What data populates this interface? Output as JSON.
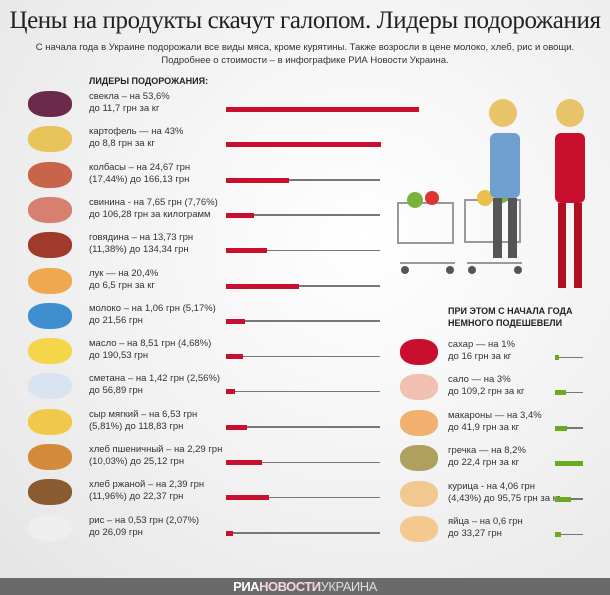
{
  "title": "Цены на продукты скачут галопом. Лидеры подорожания",
  "subtitle_1": "С начала года в Украине подорожали все виды мяса, кроме курятины. Также возросли в цене молоко, хлеб, рис и овощи.",
  "subtitle_2": "Подробнее о стоимости – в инфографике РИА Новости Украина.",
  "leaders_header": "ЛИДЕРЫ ПОДОРОЖАНИЯ:",
  "cheaper_header_1": "ПРИ ЭТОМ С НАЧАЛА ГОДА",
  "cheaper_header_2": "НЕМНОГО ПОДЕШЕВЕЛИ",
  "footer": {
    "ria": "РИА",
    "novosti": "НОВОСТИ",
    "ukraina": "УКРАИНА"
  },
  "colors": {
    "increase": "#c8102e",
    "decrease": "#6aaa1e",
    "track": "#777777",
    "footer": "#6a6a6a"
  },
  "chart_data": {
    "type": "bar",
    "unit": "%",
    "series": [
      {
        "group": "increase",
        "items": [
          {
            "icon": "beet-icon",
            "line1": "свекла – на 53,6%",
            "line2": "до 11,7 грн за кг",
            "value": 53.6
          },
          {
            "icon": "potato-icon",
            "line1": "картофель — на 43%",
            "line2": "до 8,8 грн за кг",
            "value": 43
          },
          {
            "icon": "sausage-icon",
            "line1": "колбасы – на 24,67 грн",
            "line2": "(17,44%) до 166,13 грн",
            "value": 17.44
          },
          {
            "icon": "pork-icon",
            "line1": "свинина - на 7,65 грн (7,76%)",
            "line2": "до 106,28 грн за килограмм",
            "value": 7.76
          },
          {
            "icon": "beef-icon",
            "line1": "говядина – на 13,73 грн",
            "line2": "(11,38%) до 134,34 грн",
            "value": 11.38
          },
          {
            "icon": "onion-icon",
            "line1": "лук — на 20,4%",
            "line2": "до 6,5 грн за кг",
            "value": 20.4
          },
          {
            "icon": "milk-icon",
            "line1": "молоко – на 1,06 грн (5,17%)",
            "line2": "до 21,56 грн",
            "value": 5.17
          },
          {
            "icon": "butter-icon",
            "line1": "масло – на 8,51 грн (4,68%)",
            "line2": "до 190,53 грн",
            "value": 4.68
          },
          {
            "icon": "sour-cream-icon",
            "line1": "сметана – на 1,42 грн (2,56%)",
            "line2": "до 56,89 грн",
            "value": 2.56
          },
          {
            "icon": "cheese-icon",
            "line1": "сыр мягкий – на 6,53 грн",
            "line2": "(5,81%) до 118,83 грн",
            "value": 5.81
          },
          {
            "icon": "wheat-bread-icon",
            "line1": "хлеб пшеничный – на 2,29 грн",
            "line2": "(10,03%) до 25,12 грн",
            "value": 10.03
          },
          {
            "icon": "rye-bread-icon",
            "line1": "хлеб ржаной – на 2,39 грн",
            "line2": "(11,96%) до 22,37 грн",
            "value": 11.96
          },
          {
            "icon": "rice-icon",
            "line1": "рис – на 0,53 грн (2,07%)",
            "line2": "до 26,09 грн",
            "value": 2.07
          }
        ]
      },
      {
        "group": "decrease",
        "items": [
          {
            "icon": "sugar-icon",
            "line1": "сахар — на 1%",
            "line2": "до 16 грн за кг",
            "value": 1
          },
          {
            "icon": "salo-icon",
            "line1": "сало — на 3%",
            "line2": "до 109,2 грн за кг",
            "value": 3
          },
          {
            "icon": "pasta-icon",
            "line1": "макароны — на 3,4%",
            "line2": "до 41,9 грн за кг",
            "value": 3.4
          },
          {
            "icon": "buckwheat-icon",
            "line1": "гречка — на 8,2%",
            "line2": "до 22,4 грн за кг",
            "value": 8.2
          },
          {
            "icon": "chicken-icon",
            "line1": "курица - на 4,06 грн",
            "line2": "(4,43%) до 95,75 грн за кг",
            "value": 4.43
          },
          {
            "icon": "eggs-icon",
            "line1": "яйца – на 0,6 грн",
            "line2": "до 33,27 грн",
            "value": 1.8
          }
        ]
      }
    ]
  }
}
